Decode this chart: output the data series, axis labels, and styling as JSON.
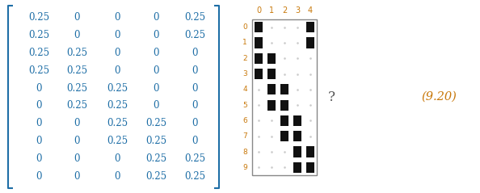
{
  "matrix": [
    [
      0.25,
      0,
      0,
      0,
      0.25
    ],
    [
      0.25,
      0,
      0,
      0,
      0.25
    ],
    [
      0.25,
      0.25,
      0,
      0,
      0
    ],
    [
      0.25,
      0.25,
      0,
      0,
      0
    ],
    [
      0,
      0.25,
      0.25,
      0,
      0
    ],
    [
      0,
      0.25,
      0.25,
      0,
      0
    ],
    [
      0,
      0,
      0.25,
      0.25,
      0
    ],
    [
      0,
      0,
      0.25,
      0.25,
      0
    ],
    [
      0,
      0,
      0,
      0.25,
      0.25
    ],
    [
      0,
      0,
      0,
      0.25,
      0.25
    ]
  ],
  "matrix_color": "#1e6ea6",
  "bracket_color": "#1e6ea6",
  "col_labels": [
    "0",
    "1",
    "2",
    "3",
    "4"
  ],
  "row_labels": [
    "0",
    "1",
    "2",
    "3",
    "4",
    "5",
    "6",
    "7",
    "8",
    "9"
  ],
  "label_color": "#c8780a",
  "dot_color": "#cccccc",
  "block_color": "#111111",
  "question_mark": "?",
  "equation_number": "(9.20)",
  "eq_color": "#c8780a",
  "background": "#ffffff",
  "grid_bg": "#ffffff",
  "grid_border": "#888888"
}
